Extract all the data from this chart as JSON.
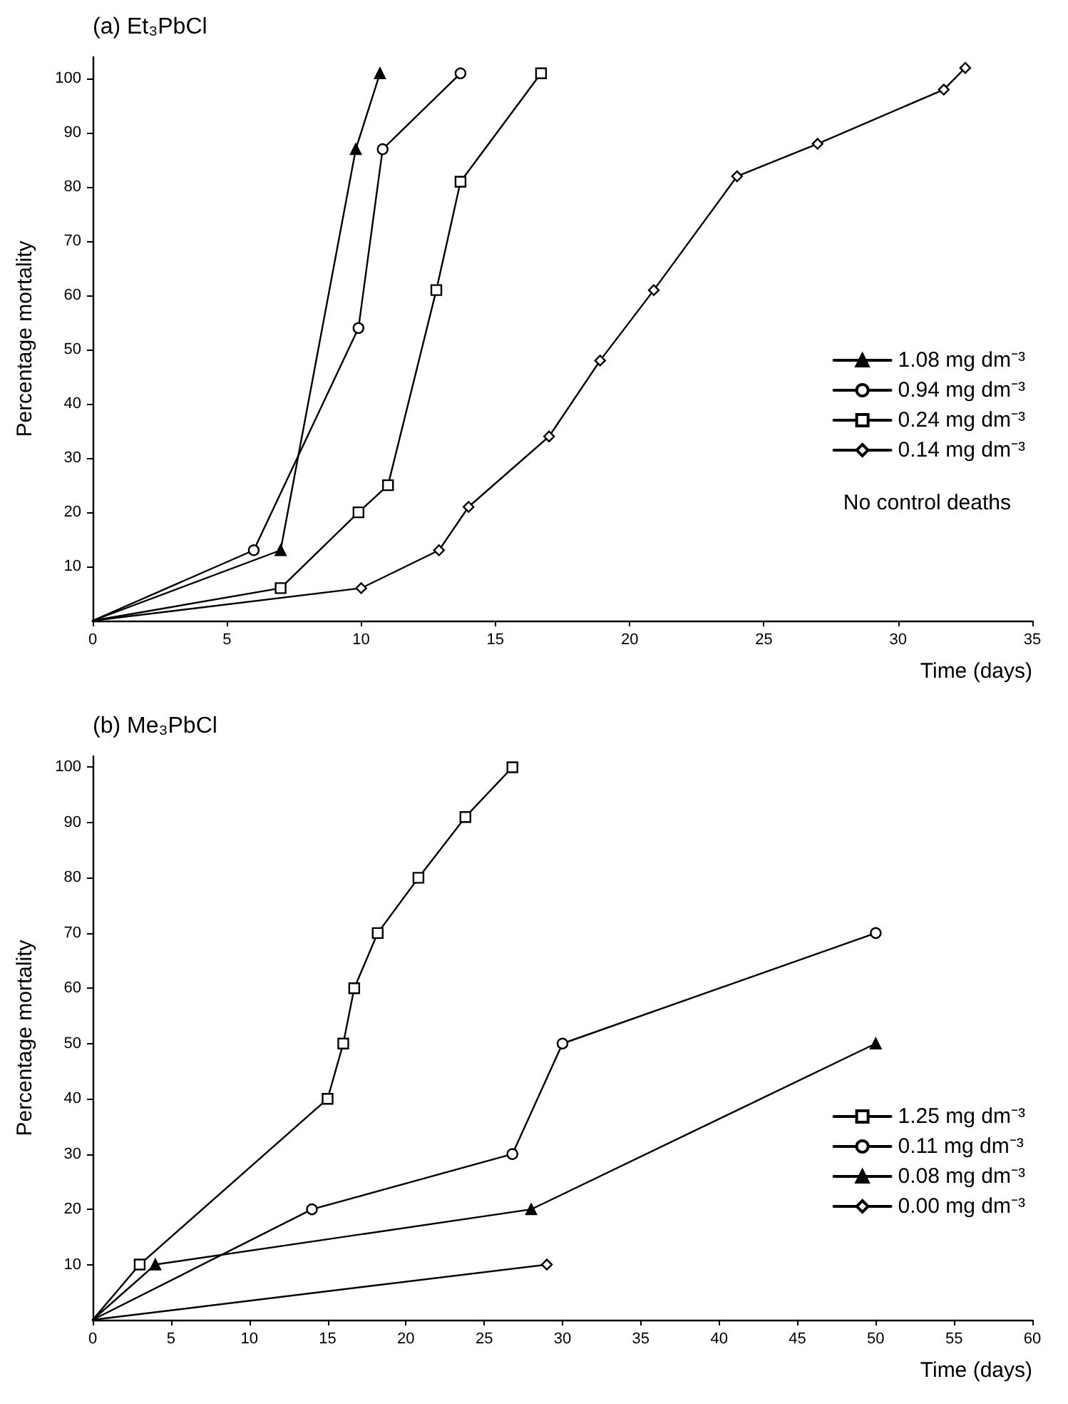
{
  "chart_data": [
    {
      "type": "line",
      "title": "(a) Et₃PbCl",
      "xlabel": "Time (days)",
      "ylabel": "Percentage mortality",
      "xlim": [
        0,
        35
      ],
      "xticks": [
        0,
        5,
        10,
        15,
        20,
        25,
        30,
        35
      ],
      "ylim": [
        0,
        104
      ],
      "yticks": [
        10,
        20,
        30,
        40,
        50,
        60,
        70,
        80,
        90,
        100
      ],
      "grid": false,
      "legend": "right",
      "line_style": "solid",
      "annotations": [
        "No control deaths"
      ],
      "series": [
        {
          "name": "1.08 mg dm⁻³",
          "color": "#000000",
          "marker": "triangle",
          "x": [
            0,
            7,
            9.8,
            10.7
          ],
          "values": [
            0,
            13,
            87,
            101
          ]
        },
        {
          "name": "0.94 mg dm⁻³",
          "color": "#000000",
          "marker": "circle",
          "x": [
            0,
            6,
            9.9,
            10.8,
            13.7
          ],
          "values": [
            0,
            13,
            54,
            87,
            101
          ]
        },
        {
          "name": "0.24 mg dm⁻³",
          "color": "#000000",
          "marker": "square",
          "x": [
            0,
            7,
            9.9,
            11,
            12.8,
            13.7,
            16.7
          ],
          "values": [
            0,
            6,
            20,
            25,
            61,
            81,
            101
          ]
        },
        {
          "name": "0.14 mg dm⁻³",
          "color": "#000000",
          "marker": "diamond",
          "x": [
            0,
            10,
            12.9,
            14,
            17,
            18.9,
            20.9,
            24,
            27,
            31.7,
            32.5
          ],
          "values": [
            0,
            6,
            13,
            21,
            34,
            48,
            61,
            82,
            88,
            98,
            102
          ]
        }
      ]
    },
    {
      "type": "line",
      "title": "(b) Me₃PbCl",
      "xlabel": "Time (days)",
      "ylabel": "Percentage mortality",
      "xlim": [
        0,
        60
      ],
      "xticks": [
        0,
        5,
        10,
        15,
        20,
        25,
        30,
        35,
        40,
        45,
        50,
        55,
        60
      ],
      "ylim": [
        0,
        102
      ],
      "yticks": [
        10,
        20,
        30,
        40,
        50,
        60,
        70,
        80,
        90,
        100
      ],
      "grid": false,
      "legend": "right",
      "line_style": "solid",
      "series": [
        {
          "name": "1.25 mg dm⁻³",
          "color": "#000000",
          "marker": "square",
          "x": [
            0,
            3,
            15,
            16,
            16.7,
            18.2,
            20.8,
            23.8,
            26.8
          ],
          "values": [
            0,
            10,
            40,
            50,
            60,
            70,
            80,
            91,
            100
          ]
        },
        {
          "name": "0.11 mg dm⁻³",
          "color": "#000000",
          "marker": "circle",
          "x": [
            0,
            14,
            26.8,
            30,
            50
          ],
          "values": [
            0,
            20,
            30,
            50,
            70
          ]
        },
        {
          "name": "0.08 mg dm⁻³",
          "color": "#000000",
          "marker": "triangle",
          "x": [
            0,
            4,
            28,
            50
          ],
          "values": [
            0,
            10,
            20,
            50
          ]
        },
        {
          "name": "0.00 mg dm⁻³",
          "color": "#000000",
          "marker": "diamond",
          "x": [
            0,
            29
          ],
          "values": [
            0,
            10
          ]
        }
      ]
    }
  ]
}
